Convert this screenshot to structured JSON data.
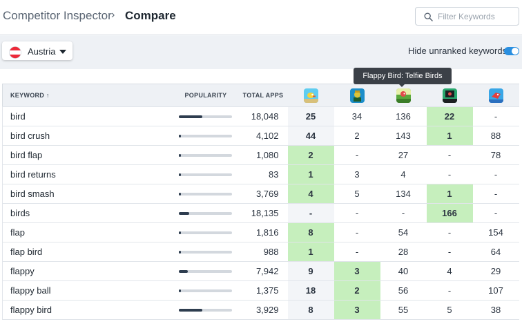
{
  "breadcrumb": {
    "root": "Competitor Inspector",
    "separator": "›",
    "current": "Compare"
  },
  "search": {
    "placeholder": "Filter Keywords",
    "value": ""
  },
  "country": {
    "label": "Austria",
    "flag": "austria-flag",
    "flag_colors": [
      "#ed2939",
      "#ffffff",
      "#ed2939"
    ]
  },
  "toggle": {
    "label": "Hide unranked keywords",
    "on": true,
    "color": "#2a8fe0"
  },
  "tooltip": {
    "text": "Flappy Bird: Telfie Birds"
  },
  "colors": {
    "highlight": "#c6efbd",
    "bar_fill": "#2e3d4f",
    "bar_track": "#d3d8de"
  },
  "table": {
    "headers": {
      "keyword": "KEYWORD",
      "sort_indicator": "↑",
      "popularity": "POPULARITY",
      "total_apps": "TOTAL APPS"
    },
    "apps": [
      {
        "icon": "flappy-bird-app-icon",
        "bg": "#5fcdf0"
      },
      {
        "icon": "trophy-bird-app-icon",
        "bg": "#1c8ec9"
      },
      {
        "icon": "telfie-birds-app-icon",
        "bg": "#5aa83c"
      },
      {
        "icon": "black-bird-app-icon",
        "bg": "#2aa86e"
      },
      {
        "icon": "red-bird-app-icon",
        "bg": "#39a6e6"
      }
    ],
    "rows": [
      {
        "keyword": "bird",
        "popularity": 0.45,
        "total": "18,048",
        "ranks": [
          "25",
          "34",
          "136",
          "22",
          "-"
        ],
        "highlight": [
          false,
          false,
          false,
          true,
          false
        ]
      },
      {
        "keyword": "bird crush",
        "popularity": 0.05,
        "total": "4,102",
        "ranks": [
          "44",
          "2",
          "143",
          "1",
          "88"
        ],
        "highlight": [
          false,
          false,
          false,
          true,
          false
        ]
      },
      {
        "keyword": "bird flap",
        "popularity": 0.05,
        "total": "1,080",
        "ranks": [
          "2",
          "-",
          "27",
          "-",
          "78"
        ],
        "highlight": [
          true,
          false,
          false,
          false,
          false
        ]
      },
      {
        "keyword": "bird returns",
        "popularity": 0.05,
        "total": "83",
        "ranks": [
          "1",
          "3",
          "4",
          "-",
          "-"
        ],
        "highlight": [
          true,
          false,
          false,
          false,
          false
        ]
      },
      {
        "keyword": "bird smash",
        "popularity": 0.05,
        "total": "3,769",
        "ranks": [
          "4",
          "5",
          "134",
          "1",
          "-"
        ],
        "highlight": [
          true,
          false,
          false,
          true,
          false
        ]
      },
      {
        "keyword": "birds",
        "popularity": 0.2,
        "total": "18,135",
        "ranks": [
          "-",
          "-",
          "-",
          "166",
          "-"
        ],
        "highlight": [
          false,
          false,
          false,
          true,
          false
        ]
      },
      {
        "keyword": "flap",
        "popularity": 0.05,
        "total": "1,816",
        "ranks": [
          "8",
          "-",
          "54",
          "-",
          "154"
        ],
        "highlight": [
          true,
          false,
          false,
          false,
          false
        ]
      },
      {
        "keyword": "flap bird",
        "popularity": 0.05,
        "total": "988",
        "ranks": [
          "1",
          "-",
          "28",
          "-",
          "64"
        ],
        "highlight": [
          true,
          false,
          false,
          false,
          false
        ]
      },
      {
        "keyword": "flappy",
        "popularity": 0.17,
        "total": "7,942",
        "ranks": [
          "9",
          "3",
          "40",
          "4",
          "29"
        ],
        "highlight": [
          false,
          true,
          false,
          false,
          false
        ]
      },
      {
        "keyword": "flappy ball",
        "popularity": 0.05,
        "total": "1,375",
        "ranks": [
          "18",
          "2",
          "56",
          "-",
          "107"
        ],
        "highlight": [
          false,
          true,
          false,
          false,
          false
        ]
      },
      {
        "keyword": "flappy bird",
        "popularity": 0.45,
        "total": "3,929",
        "ranks": [
          "8",
          "3",
          "55",
          "5",
          "38"
        ],
        "highlight": [
          false,
          true,
          false,
          false,
          false
        ]
      }
    ]
  }
}
